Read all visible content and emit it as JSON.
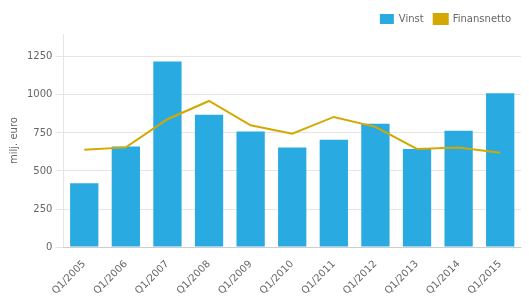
{
  "chart_data": {
    "type": "bar",
    "ylabel": "milj. euro",
    "categories": [
      "Q1/2005",
      "Q1/2006",
      "Q1/2007",
      "Q1/2008",
      "Q1/2009",
      "Q1/2010",
      "Q1/2011",
      "Q1/2012",
      "Q1/2013",
      "Q1/2014",
      "Q1/2015"
    ],
    "series": [
      {
        "name": "Vinst",
        "type": "bar",
        "color": "#29abe2",
        "values": [
          420,
          660,
          1220,
          870,
          760,
          655,
          705,
          810,
          645,
          765,
          1010
        ]
      },
      {
        "name": "Finansnetto",
        "type": "line",
        "color": "#d4a800",
        "values": [
          640,
          655,
          840,
          960,
          800,
          745,
          855,
          790,
          645,
          655,
          620
        ]
      }
    ],
    "ylim": [
      0,
      1400
    ],
    "yticks": [
      0,
      250,
      500,
      750,
      1000,
      1250
    ],
    "grid": true,
    "legend": "upper right"
  }
}
